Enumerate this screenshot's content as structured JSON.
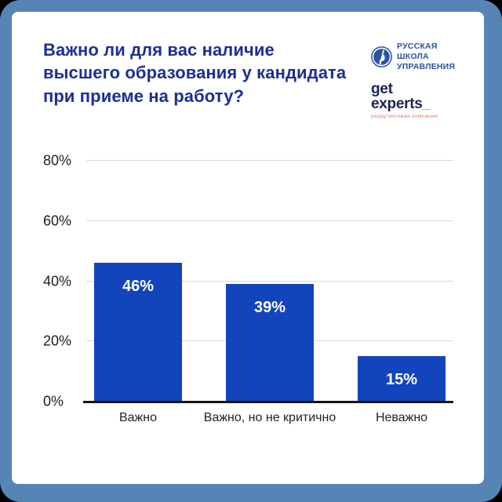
{
  "header": {
    "title": "Важно ли для вас наличие высшего образования у кандидата при приеме на работу?",
    "logos": {
      "rsu": {
        "lines": [
          "РУССКАЯ",
          "ШКОЛА",
          "УПРАВЛЕНИЯ"
        ],
        "color": "#2d51a3"
      },
      "get_experts": {
        "name": "get experts",
        "cursor": "_",
        "tagline": "рекрутинговая компания",
        "name_color": "#1a2553",
        "cursor_color": "#38c3b3",
        "tagline_color": "#dc7a70"
      }
    }
  },
  "chart_data": {
    "type": "bar",
    "title": "Важно ли для вас наличие высшего образования у кандидата при приеме на работу?",
    "categories": [
      "Важно",
      "Важно, но не критично",
      "Неважно"
    ],
    "values": [
      46,
      39,
      15
    ],
    "value_labels": [
      "46%",
      "39%",
      "15%"
    ],
    "yticks": [
      "0%",
      "20%",
      "40%",
      "60%",
      "80%"
    ],
    "ylim": [
      0,
      80
    ],
    "xlabel": "",
    "ylabel": "",
    "grid": true,
    "legend": false,
    "bar_color": "#1244bc",
    "value_label_color": "#ffffff",
    "gridline_color": "#d9d9d9",
    "axis_color": "#151515"
  },
  "colors": {
    "frame": "#5585b4",
    "card_background": "#ffffff",
    "outside_background": "#000000",
    "title_text": "#1c2e95"
  }
}
